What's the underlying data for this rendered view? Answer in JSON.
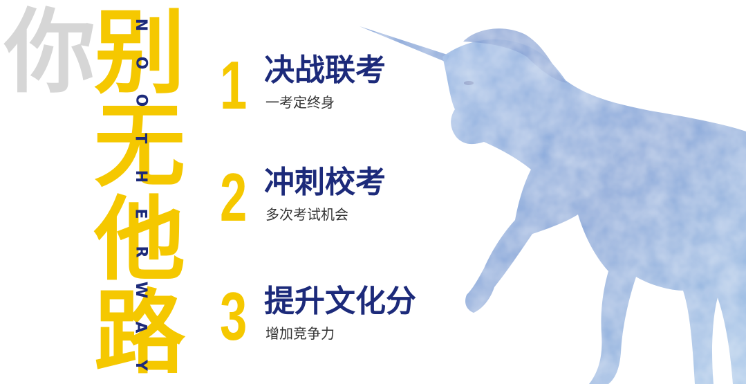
{
  "title": {
    "grey_char": "你",
    "yellow_chars": [
      "别",
      "无",
      "他",
      "路"
    ],
    "vertical_english": [
      "N",
      "O",
      "O",
      "T",
      "H",
      "E",
      "R",
      "W",
      "A",
      "Y"
    ]
  },
  "steps": [
    {
      "number": "1",
      "title": "决战联考",
      "subtitle": "一考定终身"
    },
    {
      "number": "2",
      "title": "冲刺校考",
      "subtitle": "多次考试机会"
    },
    {
      "number": "3",
      "title": "提升文化分",
      "subtitle": "增加竞争力"
    }
  ],
  "colors": {
    "accent_yellow": "#f5c800",
    "navy": "#1c2a7a",
    "unicorn_blue": "#7fa4d8",
    "grey": "#d6d6d6"
  },
  "decoration": {
    "icon": "unicorn-silhouette"
  }
}
